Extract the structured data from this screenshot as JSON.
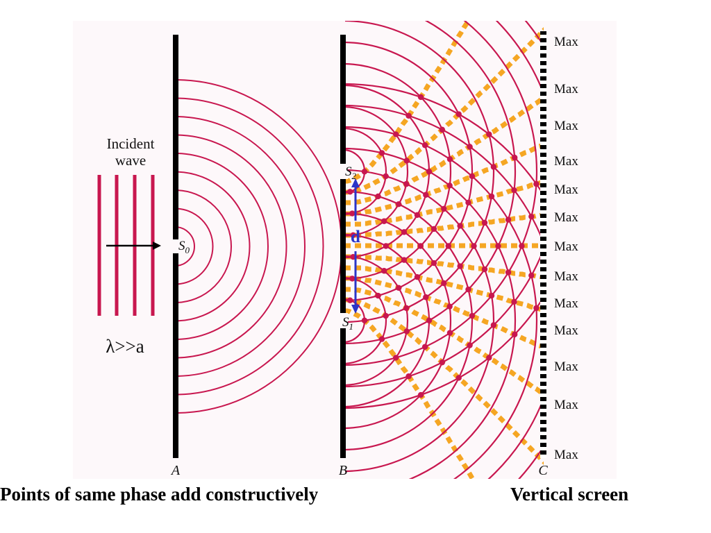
{
  "incident": {
    "line1": "Incident",
    "line2": "wave"
  },
  "condition": "λ>>a",
  "barriers": {
    "a": "A",
    "b": "B",
    "c": "C"
  },
  "sources": {
    "s0": "S",
    "s0_sub": "0",
    "s2": "S",
    "s2_sub": "2",
    "s1": "S",
    "s1_sub": "1"
  },
  "separation": "d",
  "maxima": [
    "Max",
    "Max",
    "Max",
    "Max",
    "Max",
    "Max",
    "Max",
    "Max",
    "Max",
    "Max",
    "Max",
    "Max",
    "Max"
  ],
  "captions": {
    "left": "Points of same phase add constructively",
    "right": "Vertical screen"
  },
  "colors": {
    "wave": "#c8174f",
    "constructive": "#f5a623",
    "barrier": "#000000",
    "arrow": "#2a35c8",
    "panel": "#fdf8fa"
  }
}
